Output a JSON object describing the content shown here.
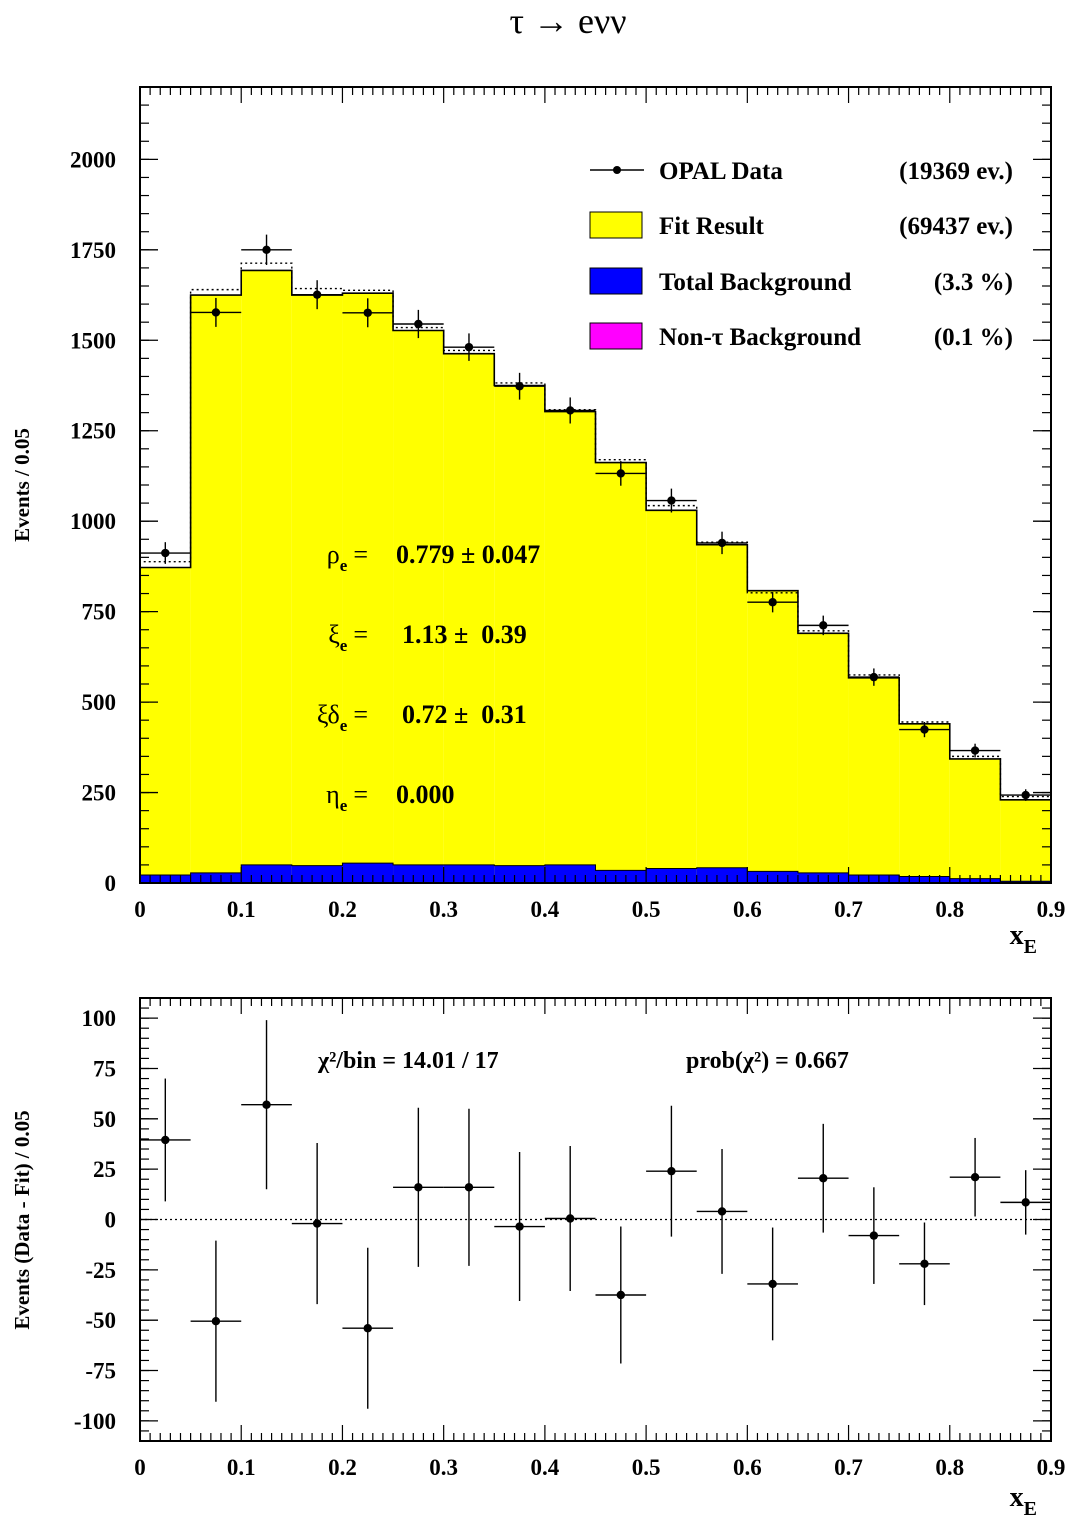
{
  "title": "τ → eνν",
  "colors": {
    "fit": "#ffff00",
    "background": "#0000ff",
    "non_tau_background": "#ff00ff",
    "data": "#000000"
  },
  "legend": {
    "entries": [
      {
        "label": "OPAL Data",
        "value": "(19369 ev.)",
        "icon": "marker-line"
      },
      {
        "label": "Fit Result",
        "value": "(69437 ev.)",
        "icon": "yellow-box"
      },
      {
        "label": "Total Background",
        "value": "(3.3 %)",
        "icon": "blue-box"
      },
      {
        "label": "Non-τ Background",
        "value": "(0.1 %)",
        "icon": "magenta-box"
      }
    ]
  },
  "fit_params": [
    {
      "symbol": "ρ",
      "sub": "e",
      "eq": "=",
      "value": "0.779 ± 0.047"
    },
    {
      "symbol": "ξ",
      "sub": "e",
      "eq": "=",
      "value": "1.13 ±  0.39"
    },
    {
      "symbol": "ξδ",
      "sub": "e",
      "eq": "=",
      "value": "0.72 ±  0.31"
    },
    {
      "symbol": "η",
      "sub": "e",
      "eq": "=",
      "value": "0.000"
    }
  ],
  "residual_stats": {
    "chi2_label": "χ²/bin = 14.01 / 17",
    "prob_label": "prob(χ²) = 0.667"
  },
  "chart_data": [
    {
      "type": "bar",
      "title": "τ → eνν",
      "xlabel": "x_E",
      "ylabel": "Events / 0.05",
      "xlim": [
        0,
        0.9
      ],
      "ylim": [
        0,
        2200
      ],
      "xticks": [
        "0",
        "0.1",
        "0.2",
        "0.3",
        "0.4",
        "0.5",
        "0.6",
        "0.7",
        "0.8",
        "0.9"
      ],
      "yticks": [
        "0",
        "250",
        "500",
        "750",
        "1000",
        "1250",
        "1500",
        "1750",
        "2000"
      ],
      "bin_edges": [
        0,
        0.05,
        0.1,
        0.15,
        0.2,
        0.25,
        0.3,
        0.35,
        0.4,
        0.45,
        0.5,
        0.55,
        0.6,
        0.65,
        0.7,
        0.75,
        0.8,
        0.85,
        0.9
      ],
      "series": [
        {
          "name": "Fit Result",
          "kind": "histogram-fill",
          "values": [
            872,
            1625,
            1693,
            1625,
            1630,
            1527,
            1463,
            1375,
            1303,
            1162,
            1030,
            935,
            808,
            690,
            567,
            440,
            343,
            230
          ]
        },
        {
          "name": "",
          "kind": "histogram-dotted",
          "values": [
            888,
            1640,
            1713,
            1643,
            1638,
            1535,
            1472,
            1382,
            1308,
            1170,
            1043,
            942,
            802,
            697,
            575,
            445,
            350,
            239
          ]
        },
        {
          "name": "Total Background",
          "kind": "histogram-fill",
          "values": [
            22,
            28,
            50,
            48,
            55,
            50,
            50,
            48,
            50,
            35,
            40,
            42,
            32,
            28,
            22,
            18,
            12,
            5
          ]
        },
        {
          "name": "Non-τ Background",
          "kind": "histogram-fill",
          "values": [
            0,
            0,
            0,
            0,
            0,
            0,
            0,
            0,
            0,
            0,
            0,
            0,
            0,
            0,
            0,
            0,
            0,
            0
          ]
        },
        {
          "name": "OPAL Data",
          "kind": "points",
          "x": [
            0.025,
            0.075,
            0.125,
            0.175,
            0.225,
            0.275,
            0.325,
            0.375,
            0.425,
            0.475,
            0.525,
            0.575,
            0.625,
            0.675,
            0.725,
            0.775,
            0.825,
            0.875
          ],
          "values": [
            912,
            1577,
            1750,
            1626,
            1576,
            1545,
            1481,
            1373,
            1306,
            1132,
            1057,
            940,
            776,
            712,
            569,
            424,
            366,
            243
          ],
          "errors": [
            30,
            40,
            42,
            40,
            40,
            39,
            38,
            37,
            36,
            34,
            33,
            31,
            28,
            27,
            24,
            21,
            19,
            16
          ]
        }
      ]
    },
    {
      "type": "scatter",
      "xlabel": "x_E",
      "ylabel": "Events (Data - Fit) / 0.05",
      "xlim": [
        0,
        0.9
      ],
      "ylim": [
        -110,
        110
      ],
      "xticks": [
        "0",
        "0.1",
        "0.2",
        "0.3",
        "0.4",
        "0.5",
        "0.6",
        "0.7",
        "0.8",
        "0.9"
      ],
      "yticks": [
        "100",
        "75",
        "50",
        "25",
        "0",
        "-25",
        "-50",
        "-75",
        "-100"
      ],
      "reference_line": 0,
      "series": [
        {
          "name": "",
          "kind": "points",
          "x": [
            0.025,
            0.075,
            0.125,
            0.175,
            0.225,
            0.275,
            0.325,
            0.375,
            0.425,
            0.475,
            0.525,
            0.575,
            0.625,
            0.675,
            0.725,
            0.775,
            0.825,
            0.875
          ],
          "values": [
            39.5,
            -50.5,
            57,
            -2,
            -54,
            16,
            16,
            -3.5,
            0.5,
            -37.5,
            24,
            4,
            -32,
            20.5,
            -8,
            -22,
            21,
            8.5
          ],
          "errors": [
            30.5,
            40,
            42,
            40,
            40,
            39.5,
            39,
            37,
            36,
            34,
            32.5,
            31,
            28,
            27,
            24,
            20.5,
            19.5,
            16
          ]
        }
      ]
    }
  ]
}
